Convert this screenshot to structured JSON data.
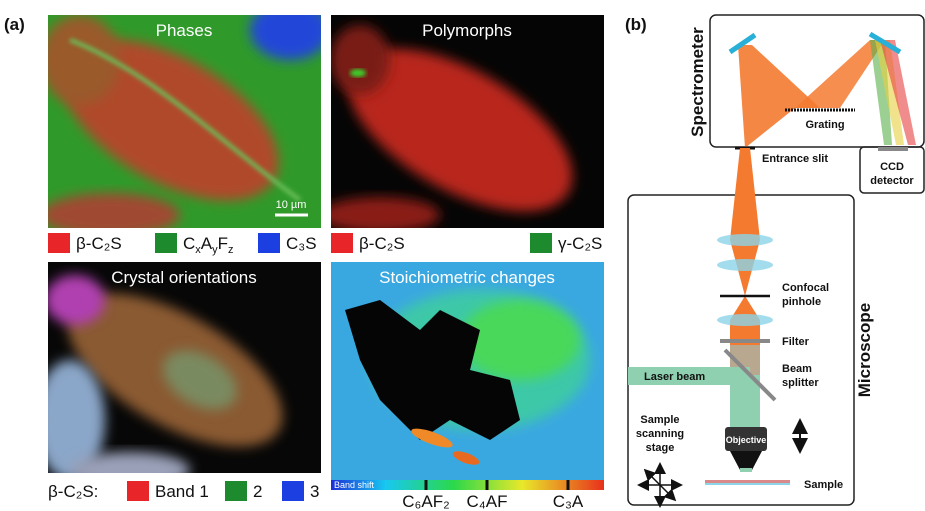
{
  "panel_a": {
    "label": "(a)",
    "maps": [
      {
        "title": "Phases",
        "scale_bar": "10 µm"
      },
      {
        "title": "Polymorphs"
      },
      {
        "title": "Crystal orientations"
      },
      {
        "title": "Stoichiometric changes"
      }
    ],
    "legend_phases": [
      {
        "text": "β-C₂S"
      },
      {
        "parts": [
          "C",
          "x",
          "A",
          "y",
          "F",
          "z"
        ]
      },
      {
        "text": "C₃S"
      }
    ],
    "legend_polymorphs": [
      "β-C₂S",
      "γ-C₂S"
    ],
    "legend_orientations": {
      "prefix": "β-C₂S:",
      "bands": [
        "Band 1",
        "2",
        "3"
      ]
    },
    "colorbar": {
      "label": "Band shift",
      "ticks": [
        "C₆AF₂",
        "C₄AF",
        "C₃A"
      ]
    }
  },
  "panel_b": {
    "label": "(b)",
    "spectrometer": "Spectrometer",
    "grating": "Grating",
    "entrance_slit": "Entrance slit",
    "ccd": [
      "CCD",
      "detector"
    ],
    "microscope": "Microscope",
    "confocal": [
      "Confocal",
      "pinhole"
    ],
    "filter": "Filter",
    "beam_splitter": [
      "Beam",
      "splitter"
    ],
    "laser": "Laser beam",
    "objective": "Objective",
    "stage": [
      "Sample",
      "scanning",
      "stage"
    ],
    "sample": "Sample"
  }
}
